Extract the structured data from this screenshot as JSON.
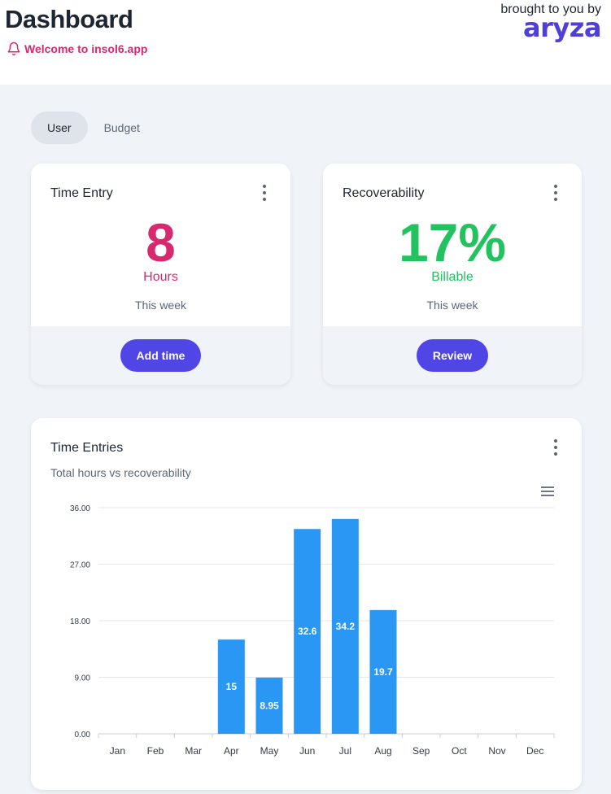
{
  "header": {
    "title": "Dashboard",
    "welcome": "Welcome to insol6.app",
    "brand_by": "brought to you by",
    "brand_logo": "aryza"
  },
  "tabs": [
    {
      "label": "User",
      "active": true
    },
    {
      "label": "Budget",
      "active": false
    }
  ],
  "time_entry_card": {
    "title": "Time Entry",
    "value": "8",
    "unit": "Hours",
    "period": "This week",
    "button": "Add time",
    "color": "#d72a6e"
  },
  "recoverability_card": {
    "title": "Recoverability",
    "value": "17%",
    "unit": "Billable",
    "period": "This week",
    "button": "Review",
    "color": "#22c35e"
  },
  "time_entries_card": {
    "title": "Time Entries",
    "subtitle": "Total hours vs recoverability"
  },
  "chart_data": {
    "type": "bar",
    "categories": [
      "Jan",
      "Feb",
      "Mar",
      "Apr",
      "May",
      "Jun",
      "Jul",
      "Aug",
      "Sep",
      "Oct",
      "Nov",
      "Dec"
    ],
    "values": [
      null,
      null,
      null,
      15,
      8.95,
      32.6,
      34.2,
      19.7,
      null,
      null,
      null,
      null
    ],
    "data_labels": [
      "",
      "",
      "",
      "15",
      "8.95",
      "32.6",
      "34.2",
      "19.7",
      "",
      "",
      "",
      ""
    ],
    "y_ticks": [
      "0.00",
      "9.00",
      "18.00",
      "27.00",
      "36.00"
    ],
    "ylim": [
      0,
      36
    ],
    "grid": true,
    "legend": "none",
    "bar_color": "#2b97f4"
  }
}
